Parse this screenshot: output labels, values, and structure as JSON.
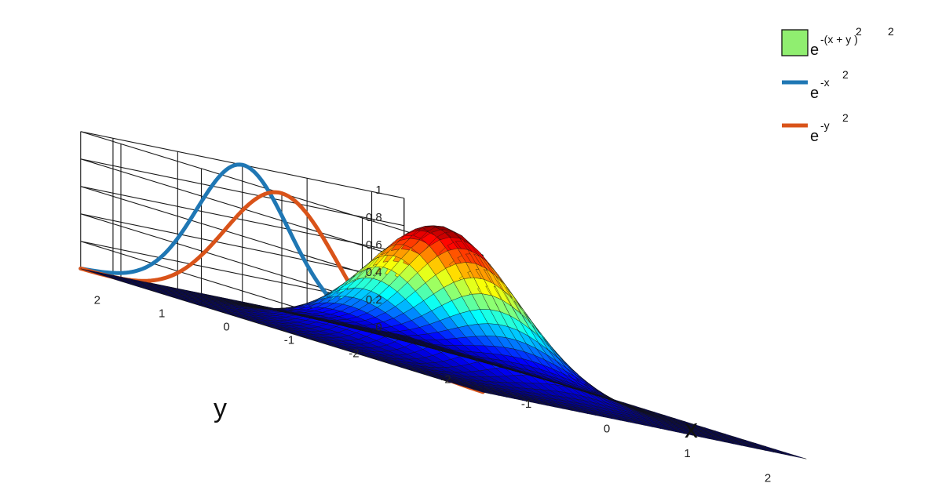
{
  "chart_data": {
    "type": "surface3d",
    "surface": {
      "function": "exp(-(x^2+y^2))",
      "x_range": [
        -2.5,
        2.5
      ],
      "y_range": [
        -2.5,
        2.5
      ],
      "grid_points": 41,
      "peak": 1,
      "colormap": "jet"
    },
    "projections": [
      {
        "function": "exp(-x^2)",
        "wall": "back",
        "color": "#1f77b4"
      },
      {
        "function": "exp(-y^2)",
        "wall": "side",
        "color": "#d95319"
      }
    ],
    "xlabel": "x",
    "ylabel": "y",
    "x_ticks": [
      "-2",
      "-1",
      "0",
      "1",
      "2"
    ],
    "y_ticks": [
      "-2",
      "-1",
      "0",
      "1",
      "2"
    ],
    "z_ticks": [
      "0",
      "0.2",
      "0.4",
      "0.6",
      "0.8",
      "1"
    ],
    "zlim": [
      0,
      1
    ],
    "grid": true,
    "legend_position": "top-right",
    "legend": [
      {
        "base": "e",
        "exponent": "-(x  + y  )",
        "sup2": "2",
        "kind": "patch",
        "color": "#90ee70"
      },
      {
        "base": "e",
        "exponent": "-x",
        "sup2": "2",
        "kind": "line",
        "color": "#1f77b4"
      },
      {
        "base": "e",
        "exponent": "-y",
        "sup2": "2",
        "kind": "line",
        "color": "#d95319"
      }
    ]
  }
}
